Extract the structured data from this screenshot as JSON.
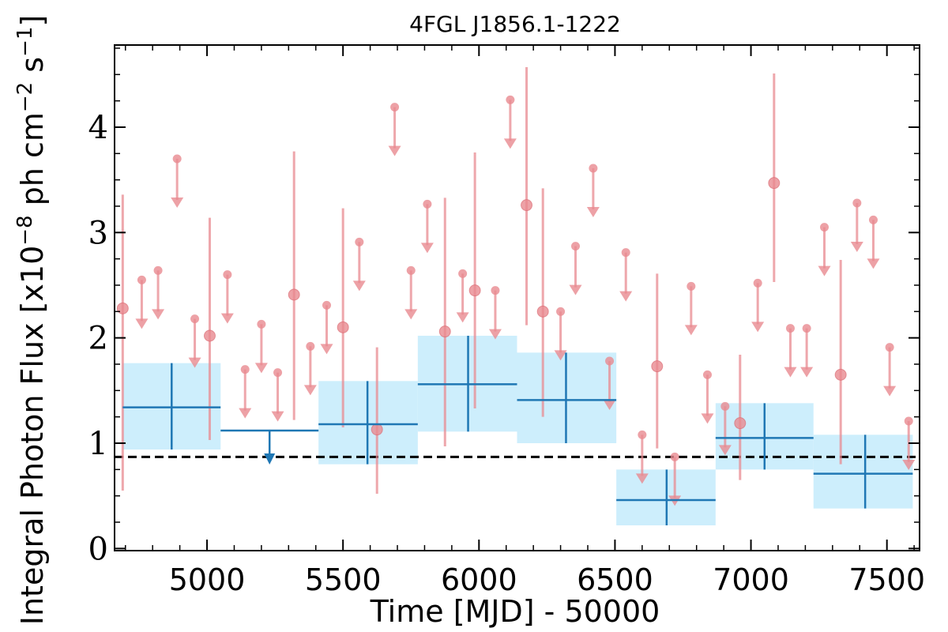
{
  "chart_data": {
    "type": "scatter",
    "title": "4FGL J1856.1-1222",
    "xlabel": "Time [MJD] - 50000",
    "ylabel": "Integral Photon Flux [x10",
    "ylabel_exp1": "−8",
    "ylabel_mid": " ph cm",
    "ylabel_exp2": "−2",
    "ylabel_mid2": " s",
    "ylabel_exp3": "−1",
    "ylabel_end": "]",
    "xlim": [
      4660,
      7620
    ],
    "ylim": [
      -0.02,
      4.78
    ],
    "x_ticks": [
      5000,
      5500,
      6000,
      6500,
      7000,
      7500
    ],
    "x_tick_labels": [
      "5000",
      "5500",
      "6000",
      "6500",
      "7000",
      "7500"
    ],
    "y_ticks": [
      0,
      1,
      2,
      3,
      4
    ],
    "y_tick_labels": [
      "0",
      "1",
      "2",
      "3",
      "4"
    ],
    "baseline": 0.87,
    "colors": {
      "points": "#e88a90",
      "bins": "#1f77b4",
      "bin_fill": "#cdeefc",
      "baseline": "#000000"
    },
    "short_bins": {
      "detections": [
        {
          "x": 4690,
          "y": 2.28,
          "ylo": 0.55,
          "yhi": 3.36
        },
        {
          "x": 5010,
          "y": 2.02,
          "ylo": 1.03,
          "yhi": 3.14
        },
        {
          "x": 5320,
          "y": 2.41,
          "ylo": 1.22,
          "yhi": 3.77
        },
        {
          "x": 5500,
          "y": 2.1,
          "ylo": 1.15,
          "yhi": 3.23
        },
        {
          "x": 5625,
          "y": 1.13,
          "ylo": 0.52,
          "yhi": 1.91
        },
        {
          "x": 5875,
          "y": 2.06,
          "ylo": 0.97,
          "yhi": 3.33
        },
        {
          "x": 5985,
          "y": 2.45,
          "ylo": 1.33,
          "yhi": 3.76
        },
        {
          "x": 6175,
          "y": 3.26,
          "ylo": 2.12,
          "yhi": 4.57
        },
        {
          "x": 6235,
          "y": 2.25,
          "ylo": 1.25,
          "yhi": 3.42
        },
        {
          "x": 6655,
          "y": 1.73,
          "ylo": 0.95,
          "yhi": 2.61
        },
        {
          "x": 6960,
          "y": 1.19,
          "ylo": 0.65,
          "yhi": 1.84
        },
        {
          "x": 7085,
          "y": 3.47,
          "ylo": 2.53,
          "yhi": 4.51
        },
        {
          "x": 7330,
          "y": 1.65,
          "ylo": 0.8,
          "yhi": 2.74
        }
      ],
      "upper_limits": [
        {
          "x": 4760,
          "y": 2.55
        },
        {
          "x": 4820,
          "y": 2.64
        },
        {
          "x": 4890,
          "y": 3.7
        },
        {
          "x": 4955,
          "y": 2.18
        },
        {
          "x": 5075,
          "y": 2.6
        },
        {
          "x": 5140,
          "y": 1.7
        },
        {
          "x": 5200,
          "y": 2.13
        },
        {
          "x": 5260,
          "y": 1.67
        },
        {
          "x": 5380,
          "y": 1.92
        },
        {
          "x": 5440,
          "y": 2.31
        },
        {
          "x": 5560,
          "y": 2.91
        },
        {
          "x": 5690,
          "y": 4.19
        },
        {
          "x": 5750,
          "y": 2.64
        },
        {
          "x": 5810,
          "y": 3.27
        },
        {
          "x": 5940,
          "y": 2.61
        },
        {
          "x": 6060,
          "y": 2.45
        },
        {
          "x": 6115,
          "y": 4.26
        },
        {
          "x": 6300,
          "y": 2.25
        },
        {
          "x": 6355,
          "y": 2.87
        },
        {
          "x": 6420,
          "y": 3.61
        },
        {
          "x": 6480,
          "y": 1.78
        },
        {
          "x": 6540,
          "y": 2.81
        },
        {
          "x": 6600,
          "y": 1.08
        },
        {
          "x": 6720,
          "y": 0.87
        },
        {
          "x": 6780,
          "y": 2.49
        },
        {
          "x": 6840,
          "y": 1.65
        },
        {
          "x": 6905,
          "y": 1.35
        },
        {
          "x": 7025,
          "y": 2.52
        },
        {
          "x": 7145,
          "y": 2.09
        },
        {
          "x": 7205,
          "y": 2.09
        },
        {
          "x": 7270,
          "y": 3.05
        },
        {
          "x": 7390,
          "y": 3.28
        },
        {
          "x": 7450,
          "y": 3.12
        },
        {
          "x": 7510,
          "y": 1.91
        },
        {
          "x": 7580,
          "y": 1.21
        }
      ]
    },
    "long_bins": {
      "detections": [
        {
          "x0": 4690,
          "x1": 5050,
          "xc": 4870,
          "y": 1.34,
          "ylo": 0.94,
          "yhi": 1.76
        },
        {
          "x0": 5410,
          "x1": 5775,
          "xc": 5590,
          "y": 1.18,
          "ylo": 0.8,
          "yhi": 1.59
        },
        {
          "x0": 5775,
          "x1": 6140,
          "xc": 5960,
          "y": 1.56,
          "ylo": 1.11,
          "yhi": 2.02
        },
        {
          "x0": 6140,
          "x1": 6505,
          "xc": 6320,
          "y": 1.41,
          "ylo": 1.0,
          "yhi": 1.86
        },
        {
          "x0": 6505,
          "x1": 6870,
          "xc": 6690,
          "y": 0.46,
          "ylo": 0.22,
          "yhi": 0.75
        },
        {
          "x0": 6870,
          "x1": 7230,
          "xc": 7050,
          "y": 1.05,
          "ylo": 0.75,
          "yhi": 1.38
        },
        {
          "x0": 7230,
          "x1": 7595,
          "xc": 7420,
          "y": 0.71,
          "ylo": 0.38,
          "yhi": 1.08
        }
      ],
      "upper_limits": [
        {
          "x0": 5050,
          "x1": 5410,
          "xc": 5230,
          "y": 1.12
        }
      ]
    }
  }
}
